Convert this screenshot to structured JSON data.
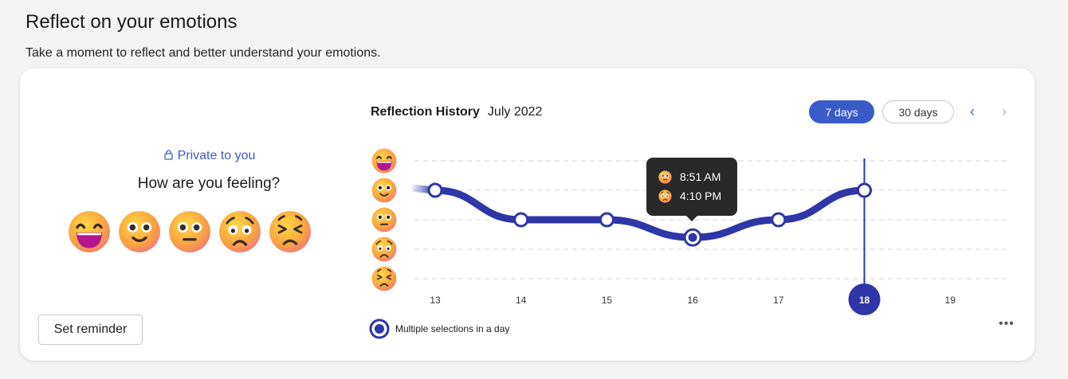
{
  "header": {
    "title": "Reflect on your emotions",
    "subtitle": "Take a moment to reflect and better understand your emotions."
  },
  "checkin": {
    "privacy": "Private to you",
    "question": "How are you feeling?",
    "emojis": [
      "grinning",
      "smiling",
      "neutral",
      "worried",
      "tired"
    ],
    "reminder_label": "Set reminder"
  },
  "history": {
    "title": "Reflection History",
    "month": "July 2022",
    "range_7": "7 days",
    "range_30": "30 days",
    "prev": "‹",
    "next": "›",
    "legend": "Multiple selections in a day",
    "more": "•••",
    "tooltip": {
      "rows": [
        {
          "emoji": "neutral",
          "time": "8:51 AM"
        },
        {
          "emoji": "worried",
          "time": "4:10 PM"
        }
      ]
    }
  },
  "colors": {
    "accent": "#3a5cc9",
    "line": "#2e36a8"
  },
  "chart_data": {
    "type": "line",
    "categories": [
      "13",
      "14",
      "15",
      "16",
      "17",
      "18",
      "19"
    ],
    "values": [
      4,
      3,
      3,
      2.4,
      3,
      4,
      null
    ],
    "multiple_selection_days": [
      "16"
    ],
    "selected_day": "18",
    "y_levels": [
      "tired",
      "worried",
      "neutral",
      "smiling",
      "grinning"
    ],
    "ylim": [
      1,
      5
    ],
    "grid": true
  }
}
